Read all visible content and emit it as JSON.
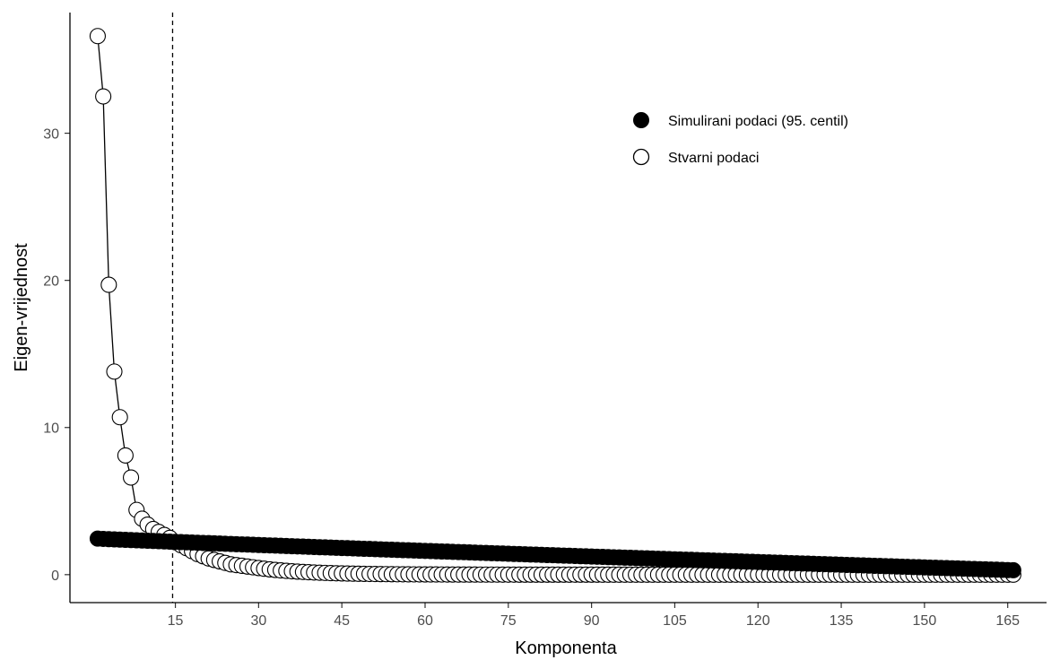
{
  "chart_data": {
    "type": "scatter",
    "title": "",
    "xlabel": "Komponenta",
    "ylabel": "Eigen-vrijednost",
    "xlim": [
      -4,
      172
    ],
    "ylim": [
      -1.9,
      38.2
    ],
    "x_ticks": [
      15,
      30,
      45,
      60,
      75,
      90,
      105,
      120,
      135,
      150,
      165
    ],
    "y_ticks": [
      0,
      10,
      20,
      30
    ],
    "grid": false,
    "legend_position": "top-right",
    "reference_line": {
      "x": 14.5,
      "style": "dashed"
    },
    "series": [
      {
        "name": "Simulirani podaci (95. centil)",
        "marker": "filled-circle",
        "color": "#000000",
        "line": false,
        "n_points": 166,
        "first_value": 2.45,
        "last_value": 0.3
      },
      {
        "name": "Stvarni podaci",
        "marker": "open-circle",
        "color": "#000000",
        "line": true,
        "n_points": 166,
        "values_first": [
          36.6,
          32.5,
          19.7,
          13.8,
          10.7,
          8.1,
          6.6,
          4.4,
          3.8,
          3.4,
          3.1,
          2.9,
          2.7,
          2.5,
          2.2,
          2.0,
          1.8,
          1.6,
          1.4,
          1.25,
          1.1,
          1.0,
          0.9,
          0.8,
          0.7,
          0.65,
          0.6,
          0.55,
          0.5,
          0.45
        ],
        "last_value": 0.0
      }
    ]
  }
}
